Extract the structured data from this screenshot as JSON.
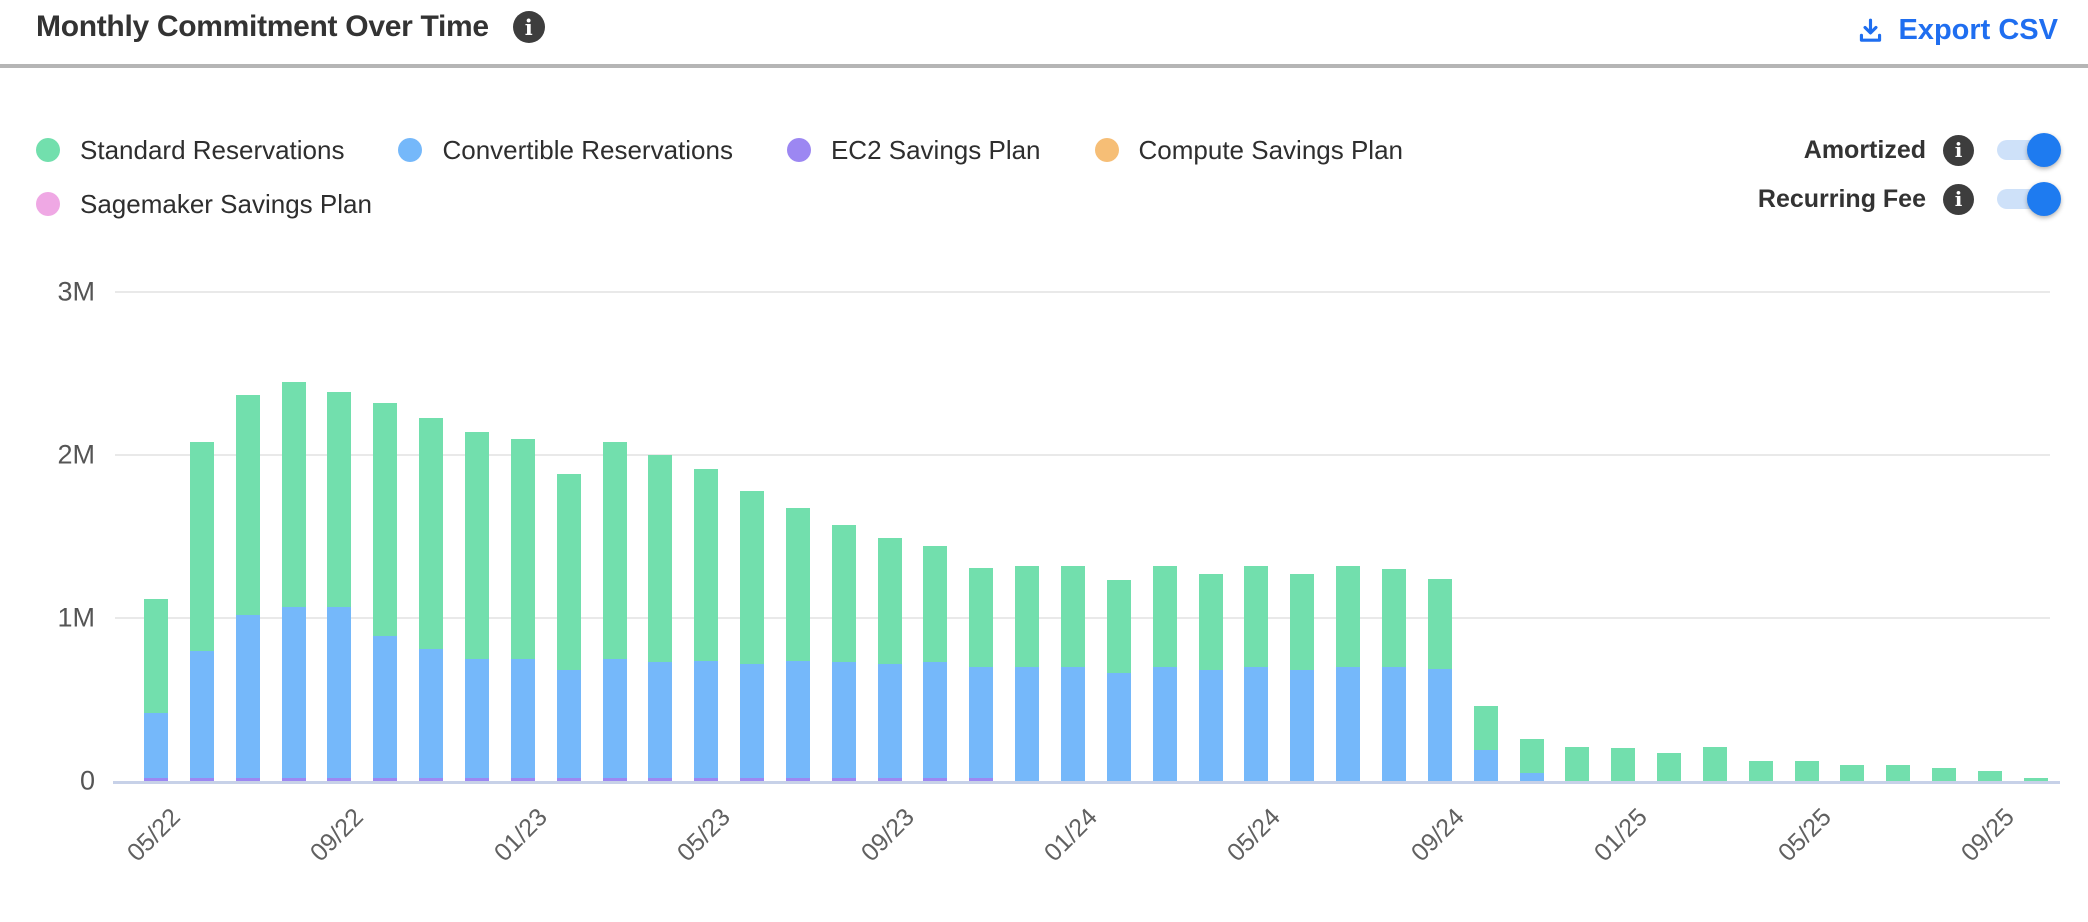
{
  "header": {
    "title": "Monthly Commitment Over Time",
    "info_icon": "info-circle",
    "export_label": "Export CSV",
    "export_icon": "download-tray-arrow",
    "export_color": "#1f6ef0"
  },
  "toggles": [
    {
      "label": "Amortized",
      "state": "on",
      "info_icon": "info-circle"
    },
    {
      "label": "Recurring Fee",
      "state": "on",
      "info_icon": "info-circle"
    }
  ],
  "toggle_colors": {
    "track": "#cee1f9",
    "knob": "#1e7bf0"
  },
  "chart_data": {
    "type": "bar",
    "stacked": true,
    "title": "Monthly Commitment Over Time",
    "xlabel": "",
    "ylabel": "",
    "ylim": [
      0,
      3
    ],
    "y_unit": "M",
    "grid": "horizontal",
    "legend_position": "top-left",
    "x_label_every": 4,
    "y_ticks": [
      {
        "label": "3M",
        "value": 3
      },
      {
        "label": "2M",
        "value": 2
      },
      {
        "label": "1M",
        "value": 1
      },
      {
        "label": "0",
        "value": 0
      }
    ],
    "series": [
      {
        "key": "standard",
        "name": "Standard Reservations",
        "color": "#72dfad"
      },
      {
        "key": "convertible",
        "name": "Convertible Reservations",
        "color": "#75b8fa"
      },
      {
        "key": "ec2",
        "name": "EC2 Savings Plan",
        "color": "#9c87f2"
      },
      {
        "key": "compute",
        "name": "Compute Savings Plan",
        "color": "#f6be76"
      },
      {
        "key": "sagemaker",
        "name": "Sagemaker Savings Plan",
        "color": "#efa8e4"
      }
    ],
    "stack_order_bottom_to_top": [
      "sagemaker",
      "compute",
      "ec2",
      "convertible",
      "standard"
    ],
    "bars": [
      {
        "month": "05/22",
        "standard": 0.7,
        "convertible": 0.4,
        "ec2": 0.02,
        "compute": 0,
        "sagemaker": 0
      },
      {
        "month": "06/22",
        "standard": 1.28,
        "convertible": 0.78,
        "ec2": 0.02,
        "compute": 0,
        "sagemaker": 0
      },
      {
        "month": "07/22",
        "standard": 1.35,
        "convertible": 1.0,
        "ec2": 0.02,
        "compute": 0,
        "sagemaker": 0
      },
      {
        "month": "08/22",
        "standard": 1.38,
        "convertible": 1.05,
        "ec2": 0.02,
        "compute": 0,
        "sagemaker": 0
      },
      {
        "month": "09/22",
        "standard": 1.32,
        "convertible": 1.05,
        "ec2": 0.02,
        "compute": 0,
        "sagemaker": 0
      },
      {
        "month": "10/22",
        "standard": 1.43,
        "convertible": 0.87,
        "ec2": 0.02,
        "compute": 0,
        "sagemaker": 0
      },
      {
        "month": "11/22",
        "standard": 1.42,
        "convertible": 0.79,
        "ec2": 0.02,
        "compute": 0,
        "sagemaker": 0
      },
      {
        "month": "12/22",
        "standard": 1.39,
        "convertible": 0.73,
        "ec2": 0.02,
        "compute": 0,
        "sagemaker": 0
      },
      {
        "month": "01/23",
        "standard": 1.35,
        "convertible": 0.73,
        "ec2": 0.02,
        "compute": 0,
        "sagemaker": 0
      },
      {
        "month": "02/23",
        "standard": 1.2,
        "convertible": 0.66,
        "ec2": 0.02,
        "compute": 0,
        "sagemaker": 0
      },
      {
        "month": "03/23",
        "standard": 1.33,
        "convertible": 0.73,
        "ec2": 0.02,
        "compute": 0,
        "sagemaker": 0
      },
      {
        "month": "04/23",
        "standard": 1.27,
        "convertible": 0.71,
        "ec2": 0.02,
        "compute": 0,
        "sagemaker": 0
      },
      {
        "month": "05/23",
        "standard": 1.18,
        "convertible": 0.72,
        "ec2": 0.02,
        "compute": 0,
        "sagemaker": 0
      },
      {
        "month": "06/23",
        "standard": 1.06,
        "convertible": 0.7,
        "ec2": 0.02,
        "compute": 0,
        "sagemaker": 0
      },
      {
        "month": "07/23",
        "standard": 0.94,
        "convertible": 0.72,
        "ec2": 0.02,
        "compute": 0,
        "sagemaker": 0
      },
      {
        "month": "08/23",
        "standard": 0.84,
        "convertible": 0.71,
        "ec2": 0.02,
        "compute": 0,
        "sagemaker": 0
      },
      {
        "month": "09/23",
        "standard": 0.77,
        "convertible": 0.7,
        "ec2": 0.02,
        "compute": 0,
        "sagemaker": 0
      },
      {
        "month": "10/23",
        "standard": 0.71,
        "convertible": 0.71,
        "ec2": 0.02,
        "compute": 0,
        "sagemaker": 0
      },
      {
        "month": "11/23",
        "standard": 0.61,
        "convertible": 0.68,
        "ec2": 0.02,
        "compute": 0,
        "sagemaker": 0
      },
      {
        "month": "12/23",
        "standard": 0.62,
        "convertible": 0.7,
        "ec2": 0,
        "compute": 0,
        "sagemaker": 0
      },
      {
        "month": "01/24",
        "standard": 0.62,
        "convertible": 0.7,
        "ec2": 0,
        "compute": 0,
        "sagemaker": 0
      },
      {
        "month": "02/24",
        "standard": 0.57,
        "convertible": 0.66,
        "ec2": 0,
        "compute": 0,
        "sagemaker": 0
      },
      {
        "month": "03/24",
        "standard": 0.62,
        "convertible": 0.7,
        "ec2": 0,
        "compute": 0,
        "sagemaker": 0
      },
      {
        "month": "04/24",
        "standard": 0.59,
        "convertible": 0.68,
        "ec2": 0,
        "compute": 0,
        "sagemaker": 0
      },
      {
        "month": "05/24",
        "standard": 0.62,
        "convertible": 0.7,
        "ec2": 0,
        "compute": 0,
        "sagemaker": 0
      },
      {
        "month": "06/24",
        "standard": 0.59,
        "convertible": 0.68,
        "ec2": 0,
        "compute": 0,
        "sagemaker": 0
      },
      {
        "month": "07/24",
        "standard": 0.62,
        "convertible": 0.7,
        "ec2": 0,
        "compute": 0,
        "sagemaker": 0
      },
      {
        "month": "08/24",
        "standard": 0.6,
        "convertible": 0.7,
        "ec2": 0,
        "compute": 0,
        "sagemaker": 0
      },
      {
        "month": "09/24",
        "standard": 0.55,
        "convertible": 0.69,
        "ec2": 0,
        "compute": 0,
        "sagemaker": 0
      },
      {
        "month": "10/24",
        "standard": 0.27,
        "convertible": 0.19,
        "ec2": 0,
        "compute": 0,
        "sagemaker": 0
      },
      {
        "month": "11/24",
        "standard": 0.21,
        "convertible": 0.05,
        "ec2": 0,
        "compute": 0,
        "sagemaker": 0
      },
      {
        "month": "12/24",
        "standard": 0.21,
        "convertible": 0,
        "ec2": 0,
        "compute": 0,
        "sagemaker": 0
      },
      {
        "month": "01/25",
        "standard": 0.2,
        "convertible": 0,
        "ec2": 0,
        "compute": 0,
        "sagemaker": 0
      },
      {
        "month": "02/25",
        "standard": 0.17,
        "convertible": 0,
        "ec2": 0,
        "compute": 0,
        "sagemaker": 0
      },
      {
        "month": "03/25",
        "standard": 0.21,
        "convertible": 0,
        "ec2": 0,
        "compute": 0,
        "sagemaker": 0
      },
      {
        "month": "04/25",
        "standard": 0.12,
        "convertible": 0,
        "ec2": 0,
        "compute": 0,
        "sagemaker": 0
      },
      {
        "month": "05/25",
        "standard": 0.12,
        "convertible": 0,
        "ec2": 0,
        "compute": 0,
        "sagemaker": 0
      },
      {
        "month": "06/25",
        "standard": 0.1,
        "convertible": 0,
        "ec2": 0,
        "compute": 0,
        "sagemaker": 0
      },
      {
        "month": "07/25",
        "standard": 0.1,
        "convertible": 0,
        "ec2": 0,
        "compute": 0,
        "sagemaker": 0
      },
      {
        "month": "08/25",
        "standard": 0.08,
        "convertible": 0,
        "ec2": 0,
        "compute": 0,
        "sagemaker": 0
      },
      {
        "month": "09/25",
        "standard": 0.06,
        "convertible": 0,
        "ec2": 0,
        "compute": 0,
        "sagemaker": 0
      },
      {
        "month": "10/25",
        "standard": 0.02,
        "convertible": 0,
        "ec2": 0,
        "compute": 0,
        "sagemaker": 0
      }
    ]
  }
}
